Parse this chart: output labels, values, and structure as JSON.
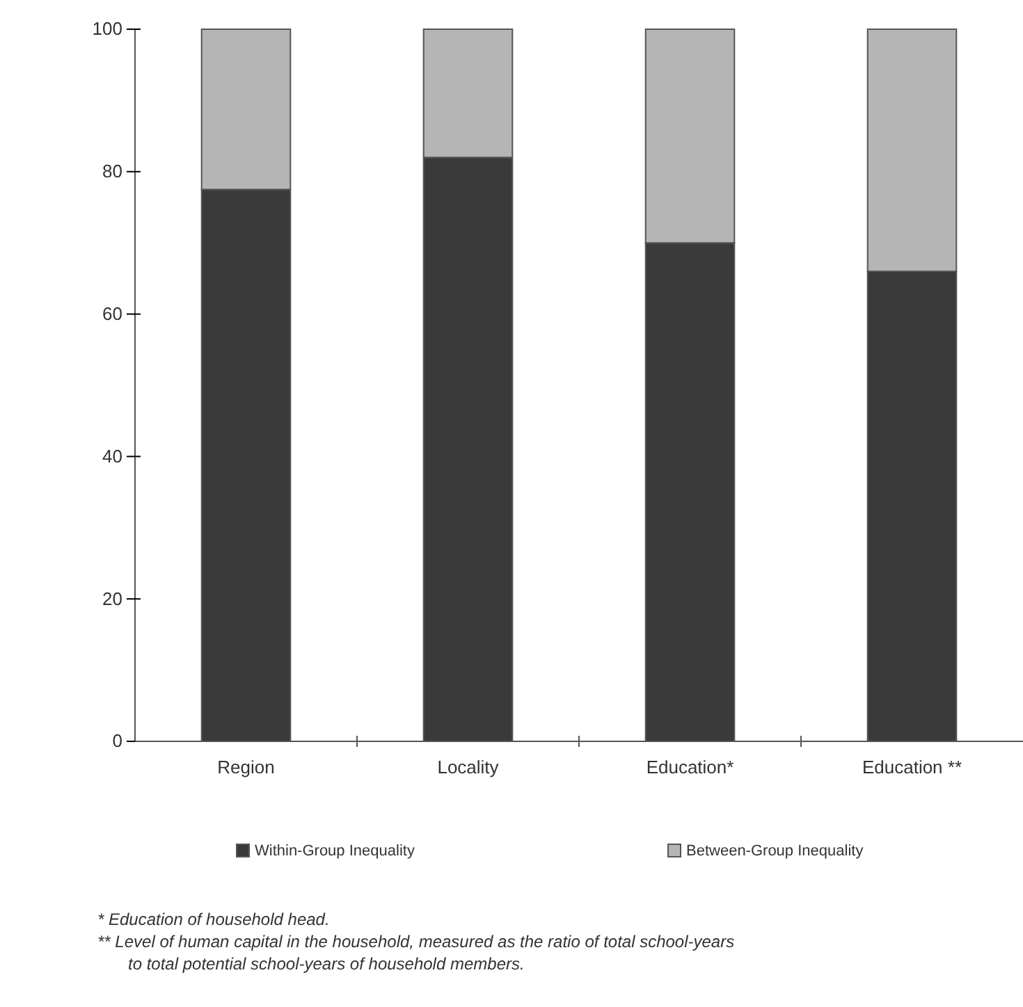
{
  "chart_data": {
    "type": "bar",
    "stacked": true,
    "categories": [
      "Region",
      "Locality",
      "Education*",
      "Education **"
    ],
    "series": [
      {
        "name": "Within-Group Inequality",
        "color": "#3a3a3a",
        "values": [
          77.5,
          82,
          70,
          66
        ]
      },
      {
        "name": "Between-Group Inequality",
        "color": "#b5b5b5",
        "values": [
          22.5,
          18,
          30,
          34
        ]
      }
    ],
    "ylim": [
      0,
      100
    ],
    "yticks": [
      0,
      20,
      40,
      60,
      80,
      100
    ],
    "grid": false,
    "legend": "bottom",
    "annotations": [
      "* Education of household head.",
      "** Level of human capital in the household, measured as the ratio of total school-years  to total potential school-years of household members."
    ]
  }
}
